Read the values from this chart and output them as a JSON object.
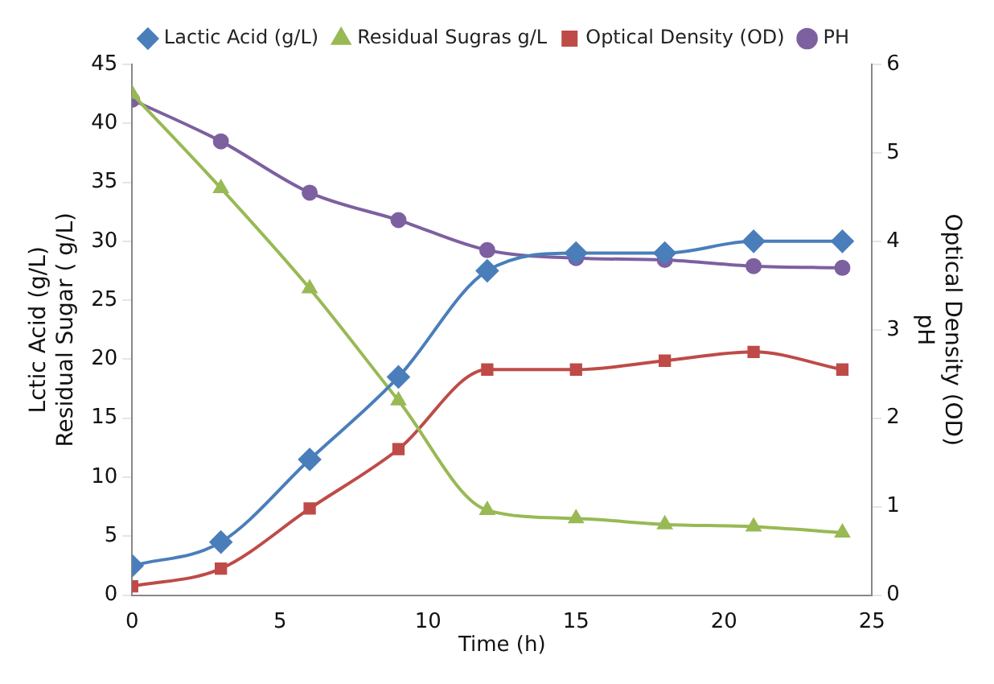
{
  "chart_data": {
    "type": "line",
    "xlabel": "Time (h)",
    "ylabel": "Lctic Acid (g/L)\nResidual Sugar ( g/L)",
    "y2label": "Optical Density (OD)\npH",
    "x": [
      0,
      3,
      6,
      9,
      12,
      15,
      18,
      21,
      24
    ],
    "series": [
      {
        "name": "Lactic Acid (g/L)",
        "color": "#4a7ebb",
        "marker": "diamond",
        "values": [
          2.5,
          4.5,
          11.5,
          18.5,
          27.5,
          29,
          29,
          30,
          30
        ]
      },
      {
        "name": "Residual Sugras g/L",
        "color": "#98b954",
        "marker": "triangle",
        "values": [
          42.5,
          34.5,
          26,
          16.5,
          7.2,
          6.5,
          6,
          5.8,
          5.3
        ]
      },
      {
        "name": "Optical Density (OD)",
        "color": "#be4b48",
        "marker": "square",
        "axis": "y2",
        "values": [
          0.1,
          0.3,
          0.98,
          1.65,
          2.55,
          2.55,
          2.65,
          2.75,
          2.55
        ]
      },
      {
        "name": "PH",
        "color": "#7d60a0",
        "marker": "circle",
        "axis": "y2",
        "values": [
          5.6,
          5.13,
          4.55,
          4.24,
          3.9,
          3.81,
          3.79,
          3.72,
          3.7
        ]
      }
    ],
    "xlim": [
      0,
      25
    ],
    "xticks": [
      0,
      5,
      10,
      15,
      20,
      25
    ],
    "ylim": [
      0,
      45
    ],
    "yticks": [
      0,
      5,
      10,
      15,
      20,
      25,
      30,
      35,
      40,
      45
    ],
    "y2lim": [
      0,
      6
    ],
    "y2ticks": [
      0,
      1,
      2,
      3,
      4,
      5,
      6
    ],
    "legend": "top",
    "grid": false
  }
}
